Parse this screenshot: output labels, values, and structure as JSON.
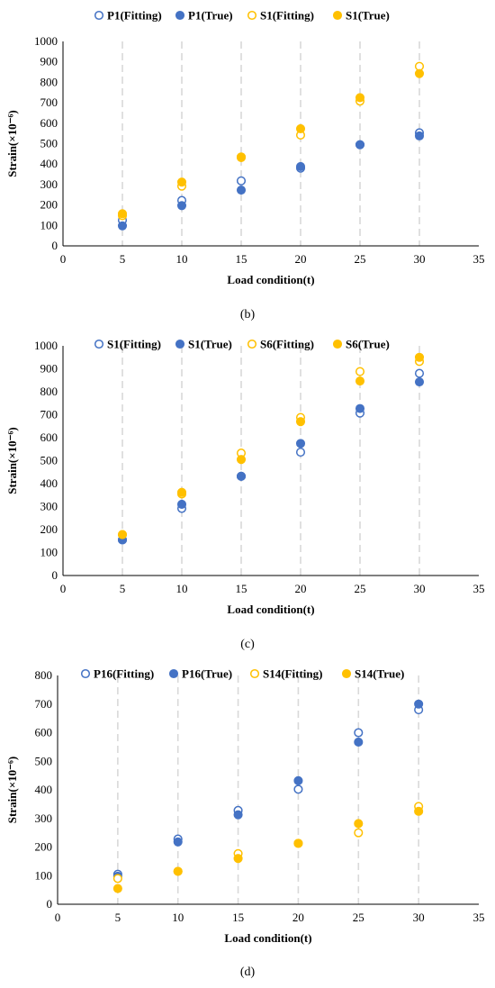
{
  "colors": {
    "blue": "#4472C4",
    "yellow": "#FFC000",
    "grid": "#D9D9D9",
    "axis": "#000000"
  },
  "chart_data": [
    {
      "type": "scatter",
      "panel_label": "(b)",
      "xlabel": "Load condition(t)",
      "ylabel": "Strain(×10⁻⁶)",
      "xlim": [
        0,
        35
      ],
      "ylim": [
        0,
        1000
      ],
      "xticks": [
        0,
        5,
        10,
        15,
        20,
        25,
        30,
        35
      ],
      "yticks": [
        0,
        100,
        200,
        300,
        400,
        500,
        600,
        700,
        800,
        900,
        1000
      ],
      "grid": "vertical dashed",
      "legend_position": "top",
      "series": [
        {
          "name": "P1(Fitting)",
          "color": "#4472C4",
          "filled": false,
          "x": [
            5,
            10,
            15,
            20,
            25,
            30
          ],
          "y": [
            125,
            222,
            318,
            380,
            495,
            553
          ]
        },
        {
          "name": "P1(True)",
          "color": "#4472C4",
          "filled": true,
          "x": [
            5,
            10,
            15,
            20,
            25,
            30
          ],
          "y": [
            98,
            197,
            273,
            388,
            495,
            538
          ]
        },
        {
          "name": "S1(Fitting)",
          "color": "#FFC000",
          "filled": false,
          "x": [
            5,
            10,
            15,
            20,
            25,
            30
          ],
          "y": [
            148,
            292,
            435,
            542,
            708,
            878
          ]
        },
        {
          "name": "S1(True)",
          "color": "#FFC000",
          "filled": true,
          "x": [
            5,
            10,
            15,
            20,
            25,
            30
          ],
          "y": [
            157,
            312,
            432,
            573,
            725,
            843
          ]
        }
      ]
    },
    {
      "type": "scatter",
      "panel_label": "(c)",
      "xlabel": "Load condition(t)",
      "ylabel": "Strain(×10⁻⁶)",
      "xlim": [
        0,
        35
      ],
      "ylim": [
        0,
        1000
      ],
      "xticks": [
        0,
        5,
        10,
        15,
        20,
        25,
        30,
        35
      ],
      "yticks": [
        0,
        100,
        200,
        300,
        400,
        500,
        600,
        700,
        800,
        900,
        1000
      ],
      "grid": "vertical dashed",
      "legend_position": "top",
      "series": [
        {
          "name": "S1(Fitting)",
          "color": "#4472C4",
          "filled": false,
          "x": [
            5,
            10,
            15,
            20,
            25,
            30
          ],
          "y": [
            155,
            292,
            432,
            537,
            707,
            880
          ]
        },
        {
          "name": "S1(True)",
          "color": "#4472C4",
          "filled": true,
          "x": [
            5,
            10,
            15,
            20,
            25,
            30
          ],
          "y": [
            155,
            310,
            432,
            575,
            727,
            843
          ]
        },
        {
          "name": "S6(Fitting)",
          "color": "#FFC000",
          "filled": false,
          "x": [
            5,
            10,
            15,
            20,
            25,
            30
          ],
          "y": [
            178,
            355,
            533,
            688,
            888,
            932
          ]
        },
        {
          "name": "S6(True)",
          "color": "#FFC000",
          "filled": true,
          "x": [
            5,
            10,
            15,
            20,
            25,
            30
          ],
          "y": [
            178,
            362,
            505,
            670,
            847,
            950
          ]
        }
      ]
    },
    {
      "type": "scatter",
      "panel_label": "(d)",
      "xlabel": "Load condition(t)",
      "ylabel": "Strain(×10⁻⁶)",
      "xlim": [
        0,
        35
      ],
      "ylim": [
        0,
        800
      ],
      "xticks": [
        0,
        5,
        10,
        15,
        20,
        25,
        30,
        35
      ],
      "yticks": [
        0,
        100,
        200,
        300,
        400,
        500,
        600,
        700,
        800
      ],
      "grid": "vertical dashed",
      "legend_position": "top",
      "series": [
        {
          "name": "P16(Fitting)",
          "color": "#4472C4",
          "filled": false,
          "x": [
            5,
            10,
            15,
            20,
            25,
            30
          ],
          "y": [
            105,
            228,
            328,
            402,
            600,
            680
          ]
        },
        {
          "name": "P16(True)",
          "color": "#4472C4",
          "filled": true,
          "x": [
            5,
            10,
            15,
            20,
            25,
            30
          ],
          "y": [
            98,
            218,
            313,
            432,
            567,
            700
          ]
        },
        {
          "name": "S14(Fitting)",
          "color": "#FFC000",
          "filled": false,
          "x": [
            5,
            10,
            15,
            20,
            25,
            30
          ],
          "y": [
            90,
            115,
            177,
            213,
            250,
            342
          ]
        },
        {
          "name": "S14(True)",
          "color": "#FFC000",
          "filled": true,
          "x": [
            5,
            10,
            15,
            20,
            25,
            30
          ],
          "y": [
            55,
            115,
            160,
            213,
            282,
            325
          ]
        }
      ]
    }
  ]
}
